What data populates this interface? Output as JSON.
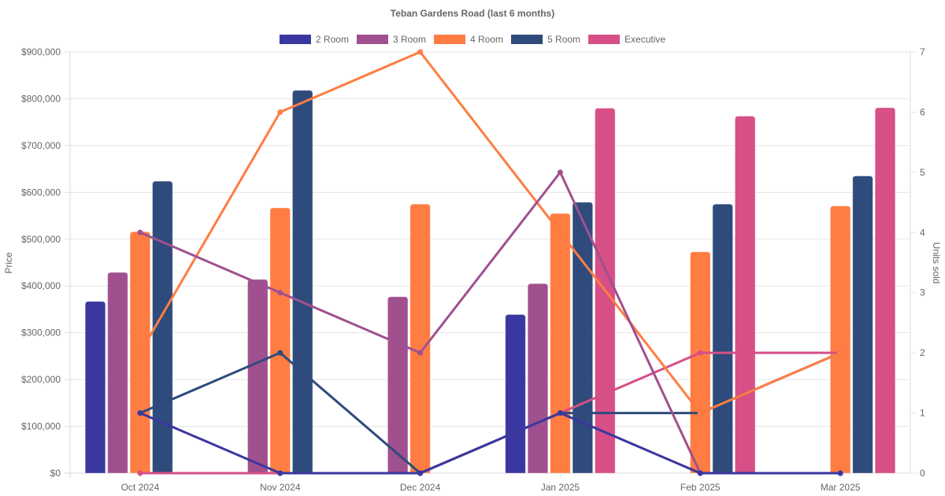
{
  "chart_data": {
    "type": "bar",
    "title": "Teban Gardens Road (last 6 months)",
    "categories": [
      "Oct 2024",
      "Nov 2024",
      "Dec 2024",
      "Jan 2025",
      "Feb 2025",
      "Mar 2025"
    ],
    "ylabel": "Price",
    "y2label": "Units sold",
    "ylim": [
      0,
      900000
    ],
    "y2lim": [
      0,
      7
    ],
    "yticks": [
      "$0",
      "$100,000",
      "$200,000",
      "$300,000",
      "$400,000",
      "$500,000",
      "$600,000",
      "$700,000",
      "$800,000",
      "$900,000"
    ],
    "y2ticks": [
      "0",
      "1",
      "2",
      "3",
      "4",
      "5",
      "6",
      "7"
    ],
    "grid": true,
    "legend_position": "top",
    "series": [
      {
        "name": "2 Room",
        "color": "#3b37a0",
        "price": [
          367000,
          null,
          null,
          339000,
          null,
          null
        ],
        "units": [
          1,
          0,
          0,
          1,
          0,
          0
        ]
      },
      {
        "name": "3 Room",
        "color": "#a0508f",
        "price": [
          429000,
          414000,
          377000,
          405000,
          null,
          null
        ],
        "units": [
          4,
          3,
          2,
          5,
          0,
          0
        ]
      },
      {
        "name": "4 Room",
        "color": "#ff7d42",
        "price": [
          516000,
          567000,
          575000,
          555000,
          473000,
          571000
        ],
        "units": [
          2,
          6,
          7,
          4,
          1,
          2
        ]
      },
      {
        "name": "5 Room",
        "color": "#2e4b7b",
        "price": [
          624000,
          818000,
          null,
          579000,
          575000,
          635000
        ],
        "units": [
          1,
          2,
          0,
          1,
          1,
          2
        ]
      },
      {
        "name": "Executive",
        "color": "#d64f86",
        "price": [
          null,
          null,
          null,
          780000,
          763000,
          781000
        ],
        "units": [
          0,
          0,
          0,
          1,
          2,
          2
        ]
      }
    ]
  }
}
